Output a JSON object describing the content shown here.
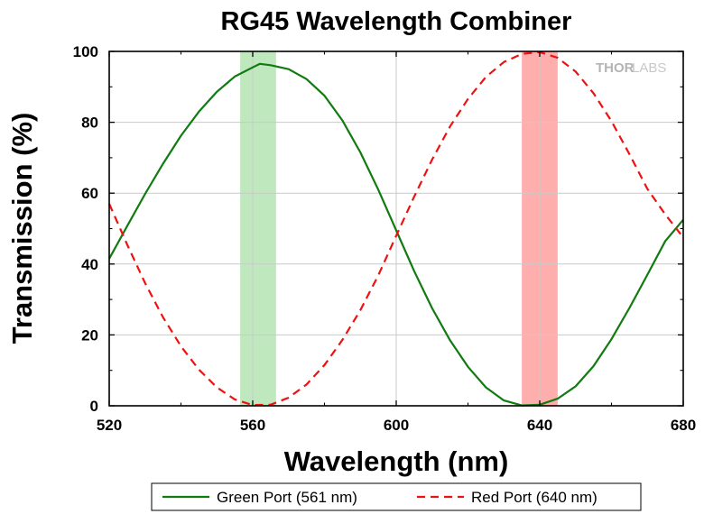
{
  "chart_data": {
    "type": "line",
    "title": "RG45 Wavelength Combiner",
    "xlabel": "Wavelength (nm)",
    "ylabel": "Transmission (%)",
    "xlim": [
      520,
      680
    ],
    "ylim": [
      0,
      100
    ],
    "xticks": [
      520,
      560,
      600,
      640,
      680
    ],
    "yticks": [
      0,
      20,
      40,
      60,
      80,
      100
    ],
    "grid": true,
    "legend_position": "bottom",
    "watermark": "THORLABS",
    "bands": [
      {
        "from": 556.5,
        "to": 566.5,
        "color": "#bfe8bf"
      },
      {
        "from": 635,
        "to": 645,
        "color": "#ffaeae"
      }
    ],
    "series": [
      {
        "name": "Green Port (561 nm)",
        "color": "#117a11",
        "style": "solid",
        "x": [
          520,
          525,
          530,
          535,
          540,
          545,
          550,
          555,
          560,
          562,
          565,
          570,
          575,
          580,
          585,
          590,
          595,
          600,
          605,
          610,
          615,
          620,
          625,
          630,
          635,
          640,
          645,
          650,
          655,
          660,
          665,
          670,
          675,
          680
        ],
        "y": [
          41.5,
          50.7,
          59.8,
          68.3,
          76.2,
          83.0,
          88.6,
          92.9,
          95.5,
          96.5,
          96.1,
          95.0,
          92.2,
          87.5,
          80.5,
          71.5,
          61.0,
          49.5,
          38.0,
          27.5,
          18.5,
          11.0,
          5.2,
          1.5,
          0.1,
          0.3,
          2.0,
          5.5,
          11.2,
          18.8,
          27.6,
          37.0,
          46.5,
          52.5
        ]
      },
      {
        "name": "Red Port (640 nm)",
        "color": "#ee1111",
        "style": "dashed",
        "x": [
          520,
          525,
          530,
          535,
          540,
          545,
          550,
          555,
          560,
          565,
          570,
          575,
          580,
          585,
          590,
          595,
          600,
          605,
          610,
          615,
          620,
          625,
          630,
          635,
          640,
          645,
          650,
          655,
          660,
          665,
          670,
          675,
          680
        ],
        "y": [
          57.0,
          45.5,
          34.6,
          25.0,
          16.8,
          10.2,
          5.2,
          1.8,
          0.2,
          0.3,
          2.3,
          6.0,
          11.5,
          18.6,
          27.0,
          36.8,
          48.0,
          59.0,
          69.5,
          78.8,
          86.6,
          92.8,
          97.0,
          99.3,
          99.8,
          98.2,
          94.3,
          88.2,
          80.3,
          71.0,
          61.2,
          54.0,
          47.5
        ]
      }
    ]
  }
}
